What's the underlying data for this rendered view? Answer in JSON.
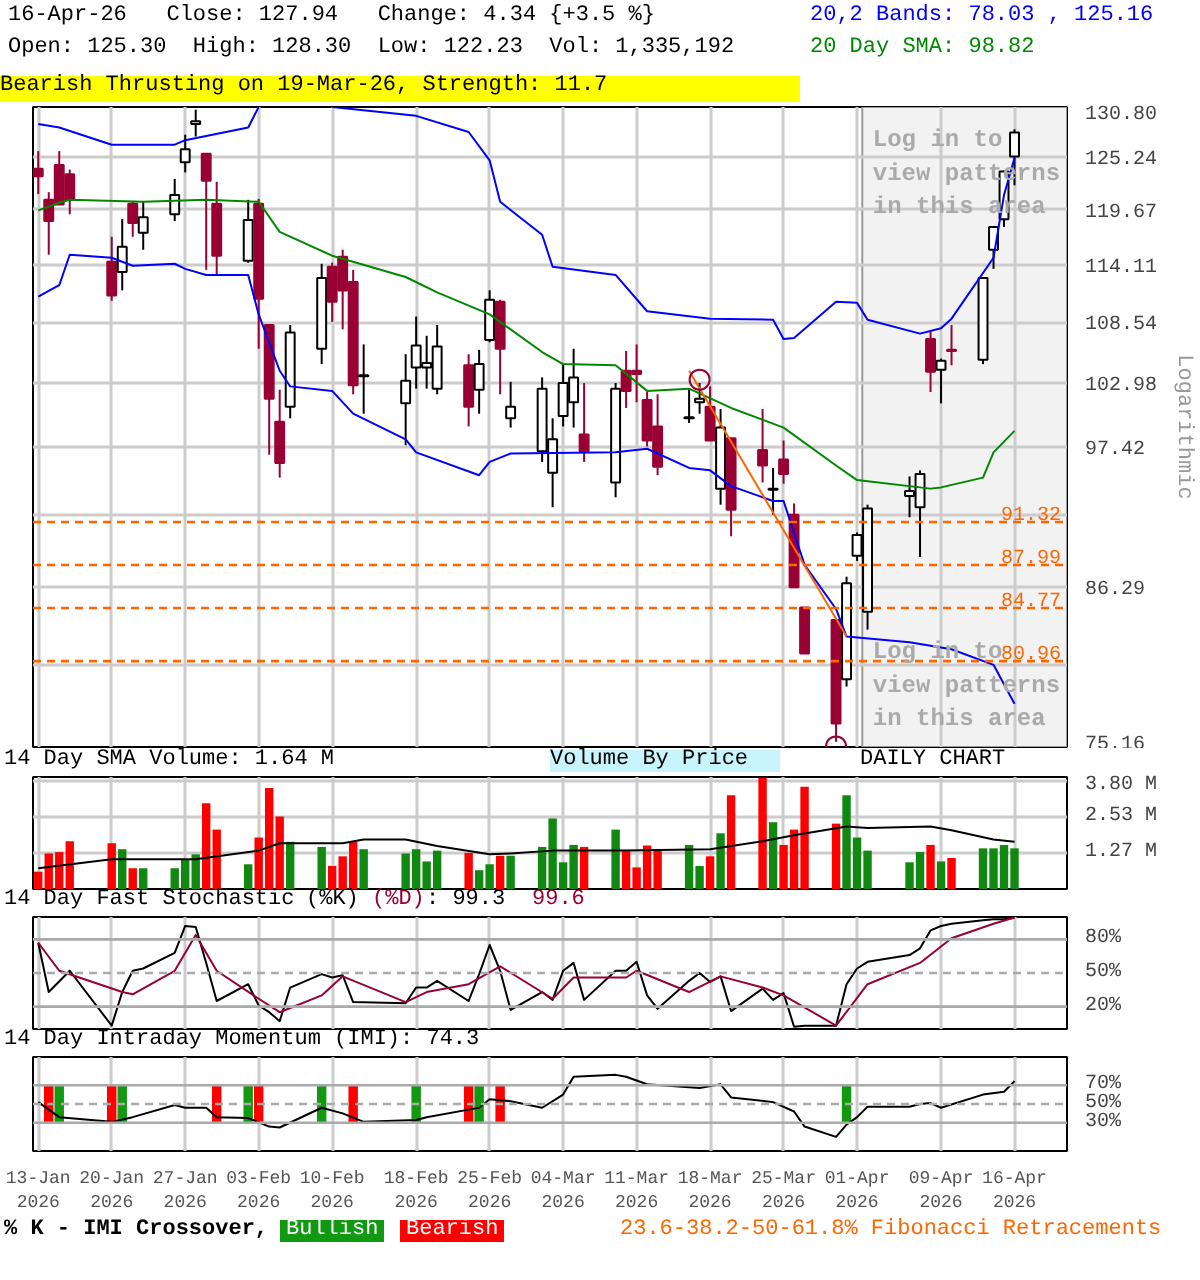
{
  "chart_data": [
    {
      "type": "candlestick",
      "title": "Bearish Thrusting on 19-Mar-26, Strength: 11.7",
      "subtitle": "16-Apr-26   Close: 127.94   Change: 4.34 {+3.5 %}",
      "annotations": [
        "Open: 125.30  High: 128.30  Low: 122.23  Vol: 1,335,192",
        "20,2 Bands: 78.03 , 125.16",
        "20 Day SMA: 98.82",
        "Log in to view patterns in this area",
        "Log in to view patterns in this area",
        "Volume By Price",
        "DAILY CHART"
      ],
      "ylabel": "Logarithmic",
      "log": true,
      "grid": true,
      "tick_labels": "y",
      "xlim": [
        "2026-01-12T12:00",
        "2026-04-21"
      ],
      "xticks": [
        {
          "value": "2026-01-13",
          "label": null
        },
        {
          "value": "2026-01-20",
          "label": null
        },
        {
          "value": "2026-01-27",
          "label": null
        },
        {
          "value": "2026-02-03",
          "label": null
        },
        {
          "value": "2026-02-10",
          "label": null
        },
        {
          "value": "2026-02-18",
          "label": null
        },
        {
          "value": "2026-02-25",
          "label": null
        },
        {
          "value": "2026-03-04",
          "label": null
        },
        {
          "value": "2026-03-11",
          "label": null
        },
        {
          "value": "2026-03-18",
          "label": null
        },
        {
          "value": "2026-03-25",
          "label": null
        },
        {
          "value": "2026-04-01",
          "label": null
        },
        {
          "value": "2026-04-09",
          "label": null
        },
        {
          "value": "2026-04-16",
          "label": null
        }
      ],
      "ylim": [
        75.16,
        130.8
      ],
      "yticks": [
        {
          "value": 130.8,
          "label": "130.80"
        },
        125.24,
        119.67,
        114.11,
        108.54,
        102.98,
        97.42,
        {
          "value": 91.85,
          "label": null
        },
        86.29,
        {
          "value": 80.73,
          "label": null
        },
        75.16
      ],
      "x": [
        "2026-01-13",
        "2026-01-14",
        "2026-01-15",
        "2026-01-16",
        "2026-01-20",
        "2026-01-21",
        "2026-01-22",
        "2026-01-23",
        "2026-01-26",
        "2026-01-27",
        "2026-01-28",
        "2026-01-29",
        "2026-01-30",
        "2026-02-02",
        "2026-02-03",
        "2026-02-04",
        "2026-02-05",
        "2026-02-06",
        "2026-02-09",
        "2026-02-10",
        "2026-02-11",
        "2026-02-12",
        "2026-02-13",
        "2026-02-17",
        "2026-02-18",
        "2026-02-19",
        "2026-02-20",
        "2026-02-23",
        "2026-02-24",
        "2026-02-25",
        "2026-02-26",
        "2026-02-27",
        "2026-03-02",
        "2026-03-03",
        "2026-03-04",
        "2026-03-05",
        "2026-03-06",
        "2026-03-09",
        "2026-03-10",
        "2026-03-11",
        "2026-03-12",
        "2026-03-13",
        "2026-03-16",
        "2026-03-17",
        "2026-03-18",
        "2026-03-19",
        "2026-03-20",
        "2026-03-23",
        "2026-03-24",
        "2026-03-25",
        "2026-03-26",
        "2026-03-27",
        "2026-03-30",
        "2026-03-31",
        "2026-04-01",
        "2026-04-02",
        "2026-04-06",
        "2026-04-07",
        "2026-04-08",
        "2026-04-09",
        "2026-04-10",
        "2026-04-13",
        "2026-04-14",
        "2026-04-15",
        "2026-04-16"
      ],
      "ohlc": [
        [
          124.0,
          125.9,
          121.3,
          123.2
        ],
        [
          120.7,
          121.5,
          115.1,
          118.5
        ],
        [
          124.4,
          125.9,
          120.2,
          120.2
        ],
        [
          123.4,
          123.9,
          119.2,
          120.7
        ],
        [
          114.4,
          116.9,
          110.6,
          111.1
        ],
        [
          113.4,
          118.7,
          111.6,
          115.9
        ],
        [
          120.3,
          120.5,
          116.9,
          118.3
        ],
        [
          117.3,
          120.5,
          115.6,
          118.9
        ],
        [
          119.2,
          122.9,
          118.5,
          121.2
        ],
        [
          124.7,
          127.7,
          123.6,
          126.1
        ],
        [
          128.9,
          130.5,
          127.5,
          129.2
        ],
        [
          125.6,
          125.6,
          113.6,
          122.7
        ],
        [
          120.3,
          122.6,
          113.1,
          115.0
        ],
        [
          114.5,
          120.7,
          114.3,
          118.6
        ],
        [
          120.3,
          120.8,
          106.1,
          110.8
        ],
        [
          108.3,
          108.3,
          96.8,
          101.6
        ],
        [
          99.6,
          102.4,
          94.9,
          96.1
        ],
        [
          100.9,
          108.3,
          99.9,
          107.6
        ],
        [
          106.1,
          114.2,
          104.7,
          112.8
        ],
        [
          113.9,
          114.3,
          108.6,
          110.5
        ],
        [
          114.9,
          115.6,
          107.9,
          111.6
        ],
        [
          112.4,
          113.6,
          102.0,
          102.8
        ],
        [
          103.6,
          106.5,
          100.3,
          103.7
        ],
        [
          101.2,
          105.6,
          97.6,
          103.2
        ],
        [
          104.4,
          109.1,
          102.5,
          106.4
        ],
        [
          104.4,
          107.3,
          102.5,
          104.8
        ],
        [
          102.5,
          108.3,
          102.0,
          106.3
        ],
        [
          104.6,
          105.6,
          99.2,
          100.9
        ],
        [
          102.4,
          106.0,
          100.3,
          104.7
        ],
        [
          106.9,
          111.6,
          106.7,
          110.7
        ],
        [
          110.5,
          110.7,
          102.0,
          106.1
        ],
        [
          99.9,
          103.1,
          99.1,
          100.9
        ],
        [
          97.1,
          103.5,
          96.2,
          102.5
        ],
        [
          95.3,
          99.9,
          92.5,
          98.1
        ],
        [
          100.1,
          104.7,
          99.2,
          103.0
        ],
        [
          101.3,
          106.1,
          99.1,
          103.5
        ],
        [
          98.5,
          103.0,
          96.2,
          97.1
        ],
        [
          94.5,
          103.0,
          93.3,
          102.5
        ],
        [
          104.1,
          105.9,
          100.8,
          102.3
        ],
        [
          104.1,
          106.5,
          101.3,
          103.8
        ],
        [
          101.5,
          102.2,
          97.5,
          98.0
        ],
        [
          99.2,
          102.0,
          95.1,
          95.8
        ],
        [
          99.9,
          102.5,
          99.5,
          100.0
        ],
        [
          101.3,
          103.0,
          100.3,
          101.6
        ],
        [
          100.9,
          102.7,
          98.0,
          98.0
        ],
        [
          94.0,
          100.7,
          92.7,
          99.1
        ],
        [
          98.2,
          98.2,
          90.2,
          92.3
        ],
        [
          97.2,
          100.7,
          94.5,
          95.9
        ],
        [
          93.9,
          95.7,
          91.9,
          94.0
        ],
        [
          96.4,
          98.0,
          94.4,
          95.2
        ],
        [
          91.9,
          92.8,
          86.3,
          86.3
        ],
        [
          84.8,
          84.8,
          81.5,
          81.5
        ],
        [
          83.9,
          83.9,
          75.5,
          76.7
        ],
        [
          79.7,
          87.1,
          79.2,
          86.6
        ],
        [
          88.7,
          90.5,
          88.3,
          90.3
        ],
        [
          84.5,
          92.7,
          83.2,
          92.4
        ],
        [
          93.4,
          95.0,
          91.7,
          93.8
        ],
        [
          92.5,
          95.5,
          88.6,
          95.2
        ],
        [
          107.0,
          107.7,
          102.2,
          104.0
        ],
        [
          104.2,
          105.2,
          101.2,
          105.0
        ],
        [
          106.0,
          108.3,
          104.6,
          105.9
        ],
        [
          105.1,
          112.8,
          104.7,
          112.8
        ],
        [
          115.6,
          117.9,
          113.7,
          117.9
        ],
        [
          118.7,
          123.8,
          117.9,
          123.7
        ],
        [
          125.3,
          128.3,
          122.23,
          127.94
        ]
      ],
      "colors": [
        "#990033",
        "#990033",
        "#990033",
        "#990033",
        "#990033",
        "#ffffff",
        "#990033",
        "#ffffff",
        "#ffffff",
        "#ffffff",
        "#ffffff",
        "#990033",
        "#990033",
        "#ffffff",
        "#990033",
        "#990033",
        "#990033",
        "#ffffff",
        "#ffffff",
        "#990033",
        "#990033",
        "#990033",
        "#ffffff",
        "#ffffff",
        "#ffffff",
        "#ffffff",
        "#ffffff",
        "#990033",
        "#ffffff",
        "#ffffff",
        "#990033",
        "#ffffff",
        "#ffffff",
        "#ffffff",
        "#ffffff",
        "#ffffff",
        "#990033",
        "#ffffff",
        "#990033",
        "#990033",
        "#990033",
        "#990033",
        "#ffffff",
        "#ffffff",
        "#990033",
        "#ffffff",
        "#990033",
        "#990033",
        "#ffffff",
        "#990033",
        "#990033",
        "#990033",
        "#990033",
        "#ffffff",
        "#ffffff",
        "#ffffff",
        "#ffffff",
        "#ffffff",
        "#990033",
        "#ffffff",
        "#990033",
        "#ffffff",
        "#ffffff",
        "#ffffff",
        "#ffffff"
      ],
      "series": [
        {
          "type": "line",
          "color": "#0000ff",
          "x": [
            "2026-01-13",
            "2026-01-15",
            "2026-01-20",
            "2026-01-26",
            "2026-01-27",
            "2026-02-02",
            "2026-02-03",
            "2026-02-05",
            "2026-02-10",
            "2026-02-18",
            "2026-02-23",
            "2026-02-25",
            "2026-02-26",
            "2026-03-02",
            "2026-03-03",
            "2026-03-09",
            "2026-03-12",
            "2026-03-18",
            "2026-03-24",
            "2026-03-25",
            "2026-03-26",
            "2026-03-30",
            "2026-04-01",
            "2026-04-02",
            "2026-04-07",
            "2026-04-09",
            "2026-04-10",
            "2026-04-14",
            "2026-04-15",
            "2026-04-16"
          ],
          "values": [
            128.9,
            128.5,
            126.6,
            126.6,
            127.1,
            128.5,
            130.8,
            null,
            130.8,
            129.8,
            128.0,
            124.9,
            120.5,
            117.1,
            113.9,
            113.1,
            109.6,
            108.9,
            108.8,
            107.0,
            107.1,
            110.5,
            110.4,
            108.8,
            107.5,
            108.0,
            108.9,
            114.8,
            121.2,
            125.16
          ]
        },
        {
          "type": "line",
          "color": "#0000ff",
          "x": [
            "2026-01-13",
            "2026-01-15",
            "2026-01-16",
            "2026-01-20",
            "2026-01-22",
            "2026-01-26",
            "2026-01-27",
            "2026-01-29",
            "2026-02-02",
            "2026-02-03",
            "2026-02-05",
            "2026-02-06",
            "2026-02-10",
            "2026-02-12",
            "2026-02-17",
            "2026-02-18",
            "2026-02-24",
            "2026-02-25",
            "2026-02-27",
            "2026-03-09",
            "2026-03-12",
            "2026-03-16",
            "2026-03-18",
            "2026-03-20",
            "2026-03-24",
            "2026-03-25",
            "2026-03-27",
            "2026-03-30",
            "2026-03-31",
            "2026-04-06",
            "2026-04-10",
            "2026-04-14",
            "2026-04-16"
          ],
          "values": [
            111.0,
            112.1,
            115.1,
            114.8,
            114.0,
            114.2,
            113.7,
            113.1,
            113.1,
            109.3,
            104.1,
            102.7,
            102.3,
            100.3,
            98.1,
            97.0,
            95.1,
            96.2,
            96.9,
            97.0,
            97.3,
            95.7,
            95.5,
            94.2,
            93.0,
            93.0,
            88.0,
            84.7,
            82.7,
            82.3,
            81.8,
            80.7,
            78.03
          ]
        },
        {
          "type": "line",
          "color": "#008800",
          "x": [
            "2026-01-13",
            "2026-01-15",
            "2026-01-16",
            "2026-01-23",
            "2026-01-29",
            "2026-02-03",
            "2026-02-05",
            "2026-02-10",
            "2026-02-17",
            "2026-02-20",
            "2026-02-25",
            "2026-03-02",
            "2026-03-04",
            "2026-03-09",
            "2026-03-12",
            "2026-03-16",
            "2026-03-20",
            "2026-03-25",
            "2026-03-30",
            "2026-04-01",
            "2026-04-08",
            "2026-04-09",
            "2026-04-13",
            "2026-04-14",
            "2026-04-16"
          ],
          "values": [
            119.6,
            120.4,
            120.7,
            120.5,
            120.7,
            120.5,
            117.4,
            115.0,
            112.9,
            111.4,
            109.3,
            105.8,
            104.7,
            104.6,
            102.3,
            102.5,
            100.8,
            99.1,
            95.9,
            94.7,
            94.0,
            94.1,
            94.9,
            97.0,
            98.82
          ]
        },
        {
          "type": "line",
          "color": "#ff6600",
          "x": [
            "2026-03-16",
            "2026-03-31"
          ],
          "values": [
            104.1,
            82.7
          ]
        },
        {
          "type": "scatter",
          "color": "#990033",
          "marker": "circle",
          "x": [
            "2026-03-17",
            "2026-03-30"
          ],
          "values": [
            103.3,
            75.2
          ]
        }
      ],
      "ref_lines": [
        {
          "axis": "y",
          "value": 91.32,
          "label": "91.32",
          "color": "#ff6600",
          "line_style": "dashed"
        },
        {
          "axis": "y",
          "value": 87.99,
          "label": "87.99",
          "color": "#ff6600",
          "line_style": "dashed"
        },
        {
          "axis": "y",
          "value": 84.77,
          "label": "84.77",
          "color": "#ff6600",
          "line_style": "dashed"
        },
        {
          "axis": "y",
          "value": 80.96,
          "label": "80.96",
          "color": "#ff6600",
          "line_style": "dashed"
        }
      ],
      "bands": [
        {
          "axis": "x",
          "from": "2026-04-01T12:00",
          "to": "2026-04-21",
          "color": "#f2f2f2"
        }
      ]
    },
    {
      "type": "bar",
      "title": "14 Day SMA Volume: 1.64 M",
      "grid": true,
      "tick_labels": "y",
      "xlim": [
        "2026-01-12T12:00",
        "2026-04-21"
      ],
      "xticks": [
        {
          "value": "2026-01-13",
          "label": null
        },
        {
          "value": "2026-01-20",
          "label": null
        },
        {
          "value": "2026-01-27",
          "label": null
        },
        {
          "value": "2026-02-03",
          "label": null
        },
        {
          "value": "2026-02-10",
          "label": null
        },
        {
          "value": "2026-02-18",
          "label": null
        },
        {
          "value": "2026-02-25",
          "label": null
        },
        {
          "value": "2026-03-04",
          "label": null
        },
        {
          "value": "2026-03-11",
          "label": null
        },
        {
          "value": "2026-03-18",
          "label": null
        },
        {
          "value": "2026-03-25",
          "label": null
        },
        {
          "value": "2026-04-01",
          "label": null
        },
        {
          "value": "2026-04-09",
          "label": null
        },
        {
          "value": "2026-04-16",
          "label": null
        }
      ],
      "ylim": [
        0,
        3.94
      ],
      "yticks": [
        {
          "value": 1.27,
          "label": "1.27 M"
        },
        {
          "value": 2.53,
          "label": "2.53 M"
        },
        {
          "value": 3.8,
          "label": "3.80 M"
        }
      ],
      "x": [
        "2026-01-13",
        "2026-01-14",
        "2026-01-15",
        "2026-01-16",
        "2026-01-20",
        "2026-01-21",
        "2026-01-22",
        "2026-01-23",
        "2026-01-26",
        "2026-01-27",
        "2026-01-28",
        "2026-01-29",
        "2026-01-30",
        "2026-02-02",
        "2026-02-03",
        "2026-02-04",
        "2026-02-05",
        "2026-02-06",
        "2026-02-09",
        "2026-02-10",
        "2026-02-11",
        "2026-02-12",
        "2026-02-13",
        "2026-02-17",
        "2026-02-18",
        "2026-02-19",
        "2026-02-20",
        "2026-02-23",
        "2026-02-24",
        "2026-02-25",
        "2026-02-26",
        "2026-02-27",
        "2026-03-02",
        "2026-03-03",
        "2026-03-04",
        "2026-03-05",
        "2026-03-06",
        "2026-03-09",
        "2026-03-10",
        "2026-03-11",
        "2026-03-12",
        "2026-03-13",
        "2026-03-16",
        "2026-03-17",
        "2026-03-18",
        "2026-03-19",
        "2026-03-20",
        "2026-03-23",
        "2026-03-24",
        "2026-03-25",
        "2026-03-26",
        "2026-03-27",
        "2026-03-30",
        "2026-03-31",
        "2026-04-01",
        "2026-04-02",
        "2026-04-06",
        "2026-04-07",
        "2026-04-08",
        "2026-04-09",
        "2026-04-10",
        "2026-04-13",
        "2026-04-14",
        "2026-04-15",
        "2026-04-16"
      ],
      "values": [
        0.61,
        1.25,
        1.3,
        1.68,
        1.61,
        1.4,
        0.73,
        0.73,
        0.73,
        1.02,
        1.22,
        3.02,
        2.09,
        0.87,
        1.81,
        3.55,
        2.55,
        1.66,
        1.48,
        0.81,
        1.15,
        1.66,
        1.4,
        1.25,
        1.4,
        0.97,
        1.35,
        1.27,
        0.66,
        0.87,
        1.17,
        1.17,
        1.48,
        2.48,
        0.94,
        1.55,
        1.48,
        2.09,
        1.33,
        0.76,
        1.53,
        1.4,
        1.55,
        0.81,
        1.15,
        1.96,
        3.3,
        3.91,
        2.35,
        1.55,
        2.09,
        3.6,
        2.3,
        3.3,
        1.81,
        1.35,
        0.94,
        1.3,
        1.55,
        0.97,
        1.09,
        1.43,
        1.43,
        1.55,
        1.43
      ],
      "colors": [
        "#ff0000",
        "#ff0000",
        "#ff0000",
        "#ff0000",
        "#ff0000",
        "#118811",
        "#ff0000",
        "#118811",
        "#118811",
        "#118811",
        "#118811",
        "#ff0000",
        "#ff0000",
        "#118811",
        "#ff0000",
        "#ff0000",
        "#ff0000",
        "#118811",
        "#118811",
        "#ff0000",
        "#ff0000",
        "#ff0000",
        "#118811",
        "#118811",
        "#118811",
        "#118811",
        "#118811",
        "#ff0000",
        "#118811",
        "#118811",
        "#ff0000",
        "#118811",
        "#118811",
        "#118811",
        "#118811",
        "#118811",
        "#ff0000",
        "#118811",
        "#ff0000",
        "#ff0000",
        "#ff0000",
        "#ff0000",
        "#118811",
        "#118811",
        "#ff0000",
        "#118811",
        "#ff0000",
        "#ff0000",
        "#118811",
        "#ff0000",
        "#ff0000",
        "#ff0000",
        "#ff0000",
        "#118811",
        "#118811",
        "#118811",
        "#118811",
        "#118811",
        "#ff0000",
        "#118811",
        "#ff0000",
        "#118811",
        "#118811",
        "#118811",
        "#118811"
      ],
      "series": [
        {
          "type": "line",
          "color": "#000000",
          "x": [
            "2026-01-13",
            "2026-01-20",
            "2026-01-28",
            "2026-02-03",
            "2026-02-05",
            "2026-02-11",
            "2026-02-13",
            "2026-02-17",
            "2026-02-20",
            "2026-02-25",
            "2026-02-27",
            "2026-03-03",
            "2026-03-10",
            "2026-03-18",
            "2026-03-23",
            "2026-03-26",
            "2026-03-31",
            "2026-04-02",
            "2026-04-08",
            "2026-04-10",
            "2026-04-14",
            "2026-04-16"
          ],
          "values": [
            0.73,
            1.05,
            1.05,
            1.35,
            1.61,
            1.61,
            1.74,
            1.74,
            1.51,
            1.22,
            1.25,
            1.35,
            1.35,
            1.4,
            1.68,
            1.89,
            2.2,
            2.15,
            2.2,
            2.07,
            1.74,
            1.66
          ]
        }
      ]
    },
    {
      "type": "line",
      "title": "14 Day Fast Stochastic",
      "annotations": [
        ": 99.3",
        "99.6"
      ],
      "grid": "x",
      "legend": "top left",
      "tick_labels": "y",
      "xlim": [
        "2026-01-12T12:00",
        "2026-04-21"
      ],
      "xticks": [
        {
          "value": "2026-01-13",
          "label": null
        },
        {
          "value": "2026-01-20",
          "label": null
        },
        {
          "value": "2026-01-27",
          "label": null
        },
        {
          "value": "2026-02-03",
          "label": null
        },
        {
          "value": "2026-02-10",
          "label": null
        },
        {
          "value": "2026-02-18",
          "label": null
        },
        {
          "value": "2026-02-25",
          "label": null
        },
        {
          "value": "2026-03-04",
          "label": null
        },
        {
          "value": "2026-03-11",
          "label": null
        },
        {
          "value": "2026-03-18",
          "label": null
        },
        {
          "value": "2026-03-25",
          "label": null
        },
        {
          "value": "2026-04-01",
          "label": null
        },
        {
          "value": "2026-04-09",
          "label": null
        },
        {
          "value": "2026-04-16",
          "label": null
        }
      ],
      "ylim": [
        0,
        100
      ],
      "yticks": [
        {
          "value": 20,
          "label": "20%"
        },
        {
          "value": 50,
          "label": "50%"
        },
        {
          "value": 80,
          "label": "80%"
        }
      ],
      "ref_lines": [
        {
          "axis": "y",
          "value": 20,
          "color": "#aaaaaa",
          "line_style": "solid"
        },
        {
          "axis": "y",
          "value": 50,
          "color": "#aaaaaa",
          "line_style": "dashed"
        },
        {
          "axis": "y",
          "value": 80,
          "color": "#aaaaaa",
          "line_style": "solid"
        }
      ],
      "series": [
        {
          "name": "(%K)",
          "color": "#000000",
          "x": [
            "2026-01-13",
            "2026-01-14",
            "2026-01-16",
            "2026-01-20",
            "2026-01-21",
            "2026-01-22",
            "2026-01-23",
            "2026-01-26",
            "2026-01-27",
            "2026-01-28",
            "2026-01-29",
            "2026-01-30",
            "2026-02-02",
            "2026-02-03",
            "2026-02-04",
            "2026-02-05",
            "2026-02-06",
            "2026-02-09",
            "2026-02-10",
            "2026-02-11",
            "2026-02-12",
            "2026-02-17",
            "2026-02-18",
            "2026-02-19",
            "2026-02-20",
            "2026-02-23",
            "2026-02-24",
            "2026-02-25",
            "2026-02-26",
            "2026-02-27",
            "2026-03-02",
            "2026-03-03",
            "2026-03-04",
            "2026-03-05",
            "2026-03-06",
            "2026-03-09",
            "2026-03-10",
            "2026-03-11",
            "2026-03-12",
            "2026-03-13",
            "2026-03-16",
            "2026-03-17",
            "2026-03-18",
            "2026-03-19",
            "2026-03-20",
            "2026-03-23",
            "2026-03-24",
            "2026-03-25",
            "2026-03-26",
            "2026-03-27",
            "2026-03-30",
            "2026-03-31",
            "2026-04-01",
            "2026-04-02",
            "2026-04-06",
            "2026-04-07",
            "2026-04-08",
            "2026-04-09",
            "2026-04-10",
            "2026-04-13",
            "2026-04-14",
            "2026-04-15",
            "2026-04-16"
          ],
          "values": [
            77,
            33,
            52,
            3,
            33,
            52,
            54,
            68,
            92,
            91,
            59,
            25,
            40,
            21,
            15,
            7,
            37,
            49,
            46,
            48,
            24,
            23,
            37,
            37,
            43,
            25,
            49,
            75,
            52,
            17,
            33,
            26,
            52,
            59,
            26,
            52,
            52,
            60,
            30,
            18,
            43,
            50,
            42,
            47,
            16,
            36,
            26,
            32,
            2,
            3,
            3,
            40,
            54,
            60,
            66,
            72,
            88,
            92,
            94,
            97,
            98,
            98,
            99.3
          ]
        },
        {
          "name": "(%D)",
          "color": "#990033",
          "x": [
            "2026-01-13",
            "2026-01-15",
            "2026-01-21",
            "2026-01-22",
            "2026-01-26",
            "2026-01-28",
            "2026-01-30",
            "2026-02-03",
            "2026-02-05",
            "2026-02-09",
            "2026-02-11",
            "2026-02-17",
            "2026-02-19",
            "2026-02-23",
            "2026-02-26",
            "2026-03-03",
            "2026-03-05",
            "2026-03-10",
            "2026-03-11",
            "2026-03-16",
            "2026-03-19",
            "2026-03-23",
            "2026-03-25",
            "2026-03-30",
            "2026-04-02",
            "2026-04-07",
            "2026-04-10",
            "2026-04-14",
            "2026-04-16"
          ],
          "values": [
            77,
            52,
            33,
            31,
            52,
            84,
            52,
            27,
            15,
            30,
            47,
            24,
            33,
            40,
            56,
            27,
            46,
            46,
            52,
            33,
            47,
            37,
            30,
            3,
            40,
            59,
            81,
            94,
            99.6
          ]
        }
      ]
    },
    {
      "type": "line",
      "title": "14 Day Intraday Momentum (IMI): 74.3",
      "annotations": [
        "23.6-38.2-50-61.8% Fibonacci Retracements"
      ],
      "grid": "x",
      "legend": "bottom",
      "legend_title": "% K - IMI Crossover,",
      "xlim": [
        "2026-01-12T12:00",
        "2026-04-21"
      ],
      "xticks": [
        {
          "value": "2026-01-13",
          "label": "13-Jan\n2026"
        },
        {
          "value": "2026-01-20",
          "label": "20-Jan\n2026"
        },
        {
          "value": "2026-01-27",
          "label": "27-Jan\n2026"
        },
        {
          "value": "2026-02-03",
          "label": "03-Feb\n2026"
        },
        {
          "value": "2026-02-10",
          "label": "10-Feb\n2026"
        },
        {
          "value": "2026-02-18",
          "label": "18-Feb\n2026"
        },
        {
          "value": "2026-02-25",
          "label": "25-Feb\n2026"
        },
        {
          "value": "2026-03-04",
          "label": "04-Mar\n2026"
        },
        {
          "value": "2026-03-11",
          "label": "11-Mar\n2026"
        },
        {
          "value": "2026-03-18",
          "label": "18-Mar\n2026"
        },
        {
          "value": "2026-03-25",
          "label": "25-Mar\n2026"
        },
        {
          "value": "2026-04-01",
          "label": "01-Apr\n2026"
        },
        {
          "value": "2026-04-09",
          "label": "09-Apr\n2026"
        },
        {
          "value": "2026-04-16",
          "label": "16-Apr\n2026"
        }
      ],
      "ylim": [
        0,
        100
      ],
      "yticks": [
        {
          "value": 30,
          "label": "30%"
        },
        {
          "value": 50,
          "label": "50%"
        },
        {
          "value": 70,
          "label": "70%"
        }
      ],
      "ref_lines": [
        {
          "axis": "y",
          "value": 30,
          "color": "#aaaaaa",
          "line_style": "solid"
        },
        {
          "axis": "y",
          "value": 50,
          "color": "#aaaaaa",
          "line_style": "dashed"
        },
        {
          "axis": "y",
          "value": 70,
          "color": "#aaaaaa",
          "line_style": "solid"
        }
      ],
      "series": [
        {
          "type": "bar",
          "name": "Bullish",
          "color": "#119911",
          "x": [
            "2026-01-15",
            "2026-01-21",
            "2026-02-02",
            "2026-02-09",
            "2026-02-18",
            "2026-02-24",
            "2026-03-31"
          ],
          "values": [
            40,
            40,
            40,
            40,
            40,
            40,
            40
          ],
          "base": [
            30,
            30,
            30,
            30,
            30,
            30,
            30
          ]
        },
        {
          "type": "bar",
          "name": "Bearish",
          "color": "#ff0000",
          "x": [
            "2026-01-14",
            "2026-01-20",
            "2026-01-30",
            "2026-02-03",
            "2026-02-12",
            "2026-02-23",
            "2026-02-26"
          ],
          "values": [
            40,
            40,
            40,
            40,
            40,
            40,
            40
          ],
          "base": [
            30,
            30,
            30,
            30,
            30,
            30,
            30
          ]
        },
        {
          "type": "line",
          "color": "#000000",
          "x": [
            "2026-01-13",
            "2026-01-15",
            "2026-01-20",
            "2026-01-22",
            "2026-01-26",
            "2026-01-27",
            "2026-01-29",
            "2026-01-30",
            "2026-02-02",
            "2026-02-04",
            "2026-02-05",
            "2026-02-09",
            "2026-02-11",
            "2026-02-13",
            "2026-02-18",
            "2026-02-19",
            "2026-02-23",
            "2026-02-24",
            "2026-02-25",
            "2026-02-27",
            "2026-03-02",
            "2026-03-04",
            "2026-03-05",
            "2026-03-09",
            "2026-03-10",
            "2026-03-12",
            "2026-03-17",
            "2026-03-19",
            "2026-03-20",
            "2026-03-24",
            "2026-03-26",
            "2026-03-27",
            "2026-03-30",
            "2026-03-31",
            "2026-04-01",
            "2026-04-02",
            "2026-04-06",
            "2026-04-07",
            "2026-04-08",
            "2026-04-09",
            "2026-04-13",
            "2026-04-15",
            "2026-04-16"
          ],
          "values": [
            52,
            36,
            31,
            36,
            49,
            46,
            46,
            36,
            35,
            26,
            25,
            46,
            40,
            31,
            33,
            36,
            44,
            46,
            55,
            53,
            46,
            60,
            79,
            81,
            79,
            71,
            67,
            71,
            57,
            52,
            42,
            26,
            15,
            28,
            36,
            47,
            47,
            50,
            51,
            46,
            60,
            63,
            74.3
          ]
        }
      ]
    }
  ]
}
